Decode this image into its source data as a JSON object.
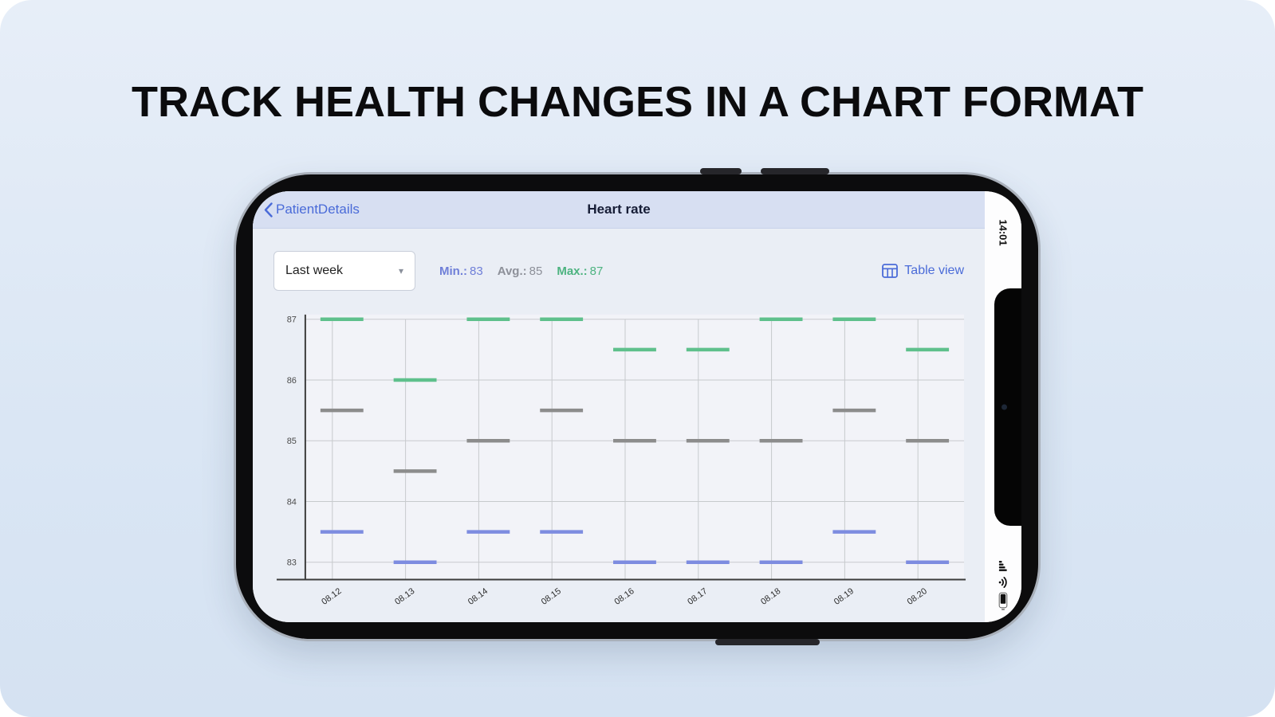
{
  "page": {
    "title": "TRACK HEALTH CHANGES IN A CHART FORMAT"
  },
  "phone": {
    "status": {
      "time": "14:01"
    },
    "nav": {
      "back": "PatientDetails",
      "title": "Heart rate"
    },
    "controls": {
      "period": "Last week",
      "stats": [
        {
          "label": "Min.:",
          "value": "83",
          "color": "#6f7fd8"
        },
        {
          "label": "Avg.:",
          "value": "85",
          "color": "#8d9099"
        },
        {
          "label": "Max.:",
          "value": "87",
          "color": "#4db380"
        }
      ],
      "table_view": "Table view"
    },
    "colors": {
      "link": "#4a6bd8",
      "nav_bg": "#d7dff2"
    }
  },
  "chart_data": {
    "type": "scatter",
    "marker": "horizontal-dash",
    "categories": [
      "08.12",
      "08.13",
      "08.14",
      "08.15",
      "08.16",
      "08.17",
      "08.18",
      "08.19",
      "08.20"
    ],
    "series": [
      {
        "name": "Max",
        "color": "#5fc08c",
        "values": [
          87,
          86,
          87,
          87,
          86.5,
          86.5,
          87,
          87,
          86.5
        ]
      },
      {
        "name": "Avg",
        "color": "#8c8c8c",
        "values": [
          85.5,
          84.5,
          85,
          85.5,
          85,
          85,
          85,
          85.5,
          85
        ]
      },
      {
        "name": "Min",
        "color": "#7d8ce0",
        "values": [
          83.5,
          83,
          83.5,
          83.5,
          83,
          83,
          83,
          83.5,
          83
        ]
      }
    ],
    "ylim": [
      83,
      87
    ],
    "yticks": [
      87,
      86,
      85,
      84,
      83
    ],
    "xlabel": "",
    "ylabel": "",
    "grid": true,
    "legend": false
  }
}
